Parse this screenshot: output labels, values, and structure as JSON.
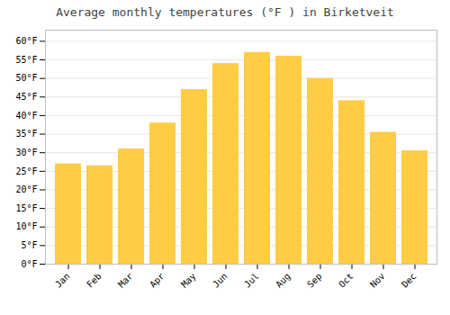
{
  "chart_data": {
    "type": "bar",
    "title": "Average monthly temperatures (°F ) in Birketveit",
    "categories": [
      "Jan",
      "Feb",
      "Mar",
      "Apr",
      "May",
      "Jun",
      "Jul",
      "Aug",
      "Sep",
      "Oct",
      "Nov",
      "Dec"
    ],
    "values": [
      27,
      26.5,
      31,
      38,
      47,
      54,
      57,
      56,
      50,
      44,
      35.5,
      30.5
    ],
    "color": "#FFCC44",
    "ylim": [
      0,
      63
    ],
    "yticks": [
      {
        "value": 0,
        "label": "0°F"
      },
      {
        "value": 5,
        "label": "5°F"
      },
      {
        "value": 10,
        "label": "10°F"
      },
      {
        "value": 15,
        "label": "15°F"
      },
      {
        "value": 20,
        "label": "20°F"
      },
      {
        "value": 25,
        "label": "25°F"
      },
      {
        "value": 30,
        "label": "30°F"
      },
      {
        "value": 35,
        "label": "35°F"
      },
      {
        "value": 40,
        "label": "40°F"
      },
      {
        "value": 45,
        "label": "45°F"
      },
      {
        "value": 50,
        "label": "50°F"
      },
      {
        "value": 55,
        "label": "55°F"
      },
      {
        "value": 60,
        "label": "60°F"
      }
    ],
    "grid": true
  }
}
